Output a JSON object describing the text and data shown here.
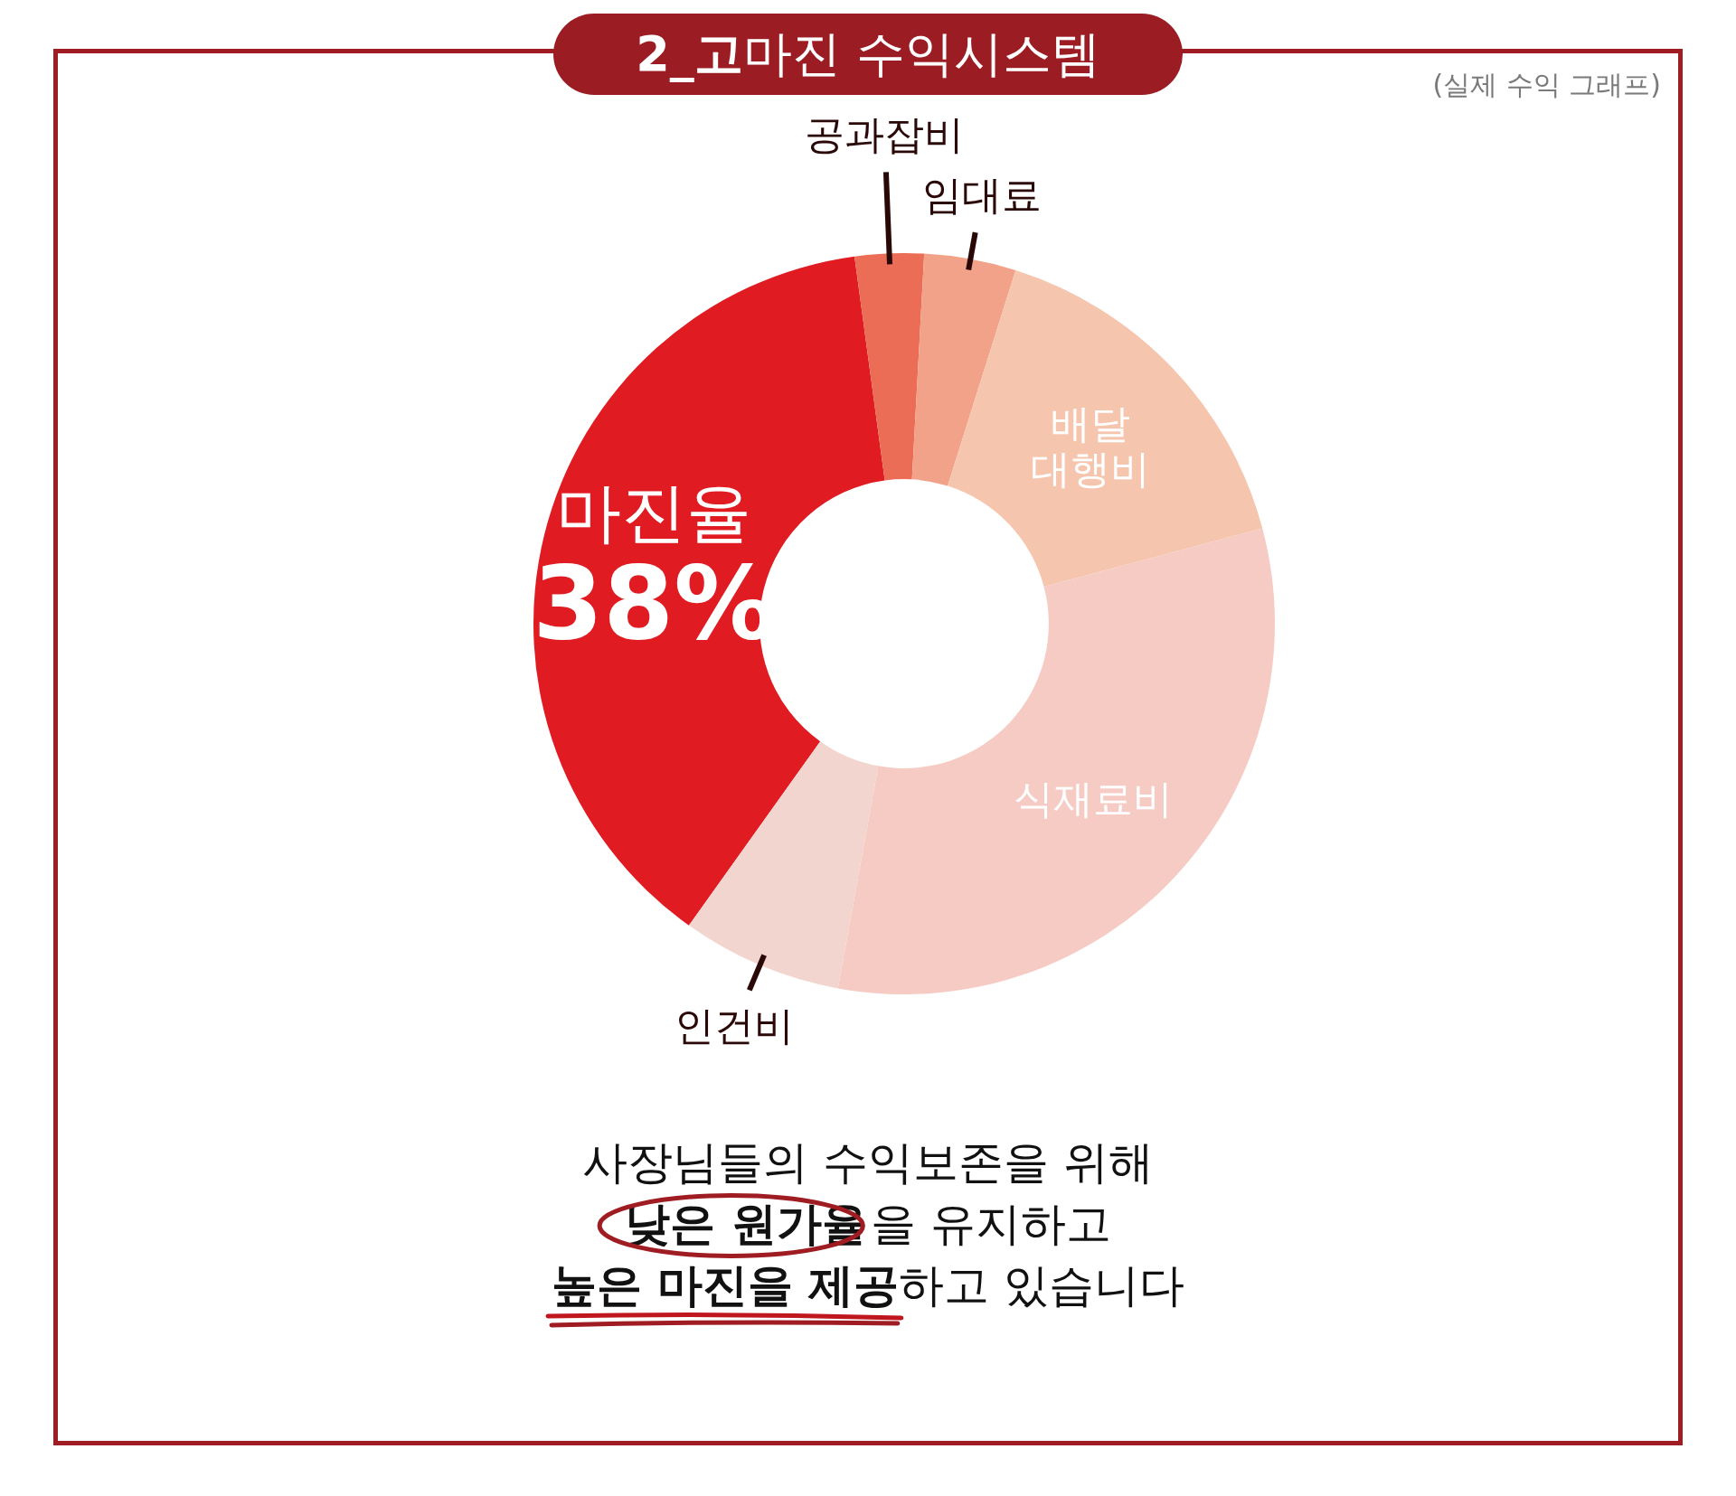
{
  "chart_data": {
    "type": "donut",
    "title": "2_고마진 수익시스템",
    "subtitle": "(실제 수익 그래프)",
    "categories": [
      "마진율",
      "공과잡비",
      "임대료",
      "배달대행비",
      "식재료비",
      "인건비"
    ],
    "values": [
      38,
      3,
      4,
      16,
      32,
      7
    ],
    "colors": [
      "#e01b22",
      "#ec6d55",
      "#f1a289",
      "#f6c5ae",
      "#f6cbc4",
      "#f3d5cf"
    ],
    "value_labels": [
      "38%",
      null,
      null,
      null,
      null,
      null
    ],
    "annotations": [
      "사장님들의 수익보존을 위해",
      "낮은 원가율을 유지하고",
      "높은 마진을 제공하고 있습니다"
    ]
  }
}
